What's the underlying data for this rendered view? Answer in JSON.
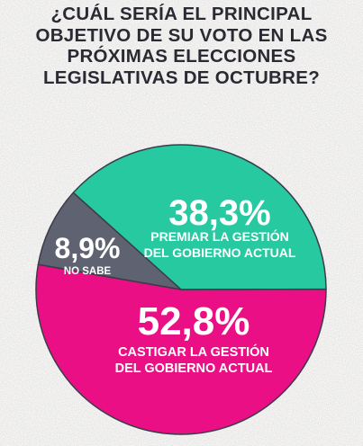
{
  "title_lines": [
    "¿CUÁL SERÍA EL PRINCIPAL",
    "OBJETIVO DE SU VOTO EN LAS",
    "PRÓXIMAS ELECCIONES",
    "LEGISLATIVAS DE OCTUBRE?"
  ],
  "colors": {
    "background": "#f1f0ef",
    "title": "#2b2a32"
  },
  "chart_data": {
    "type": "pie",
    "slices": [
      {
        "value": 38.3,
        "value_label": "38,3%",
        "label_lines": [
          "PREMIAR LA GESTIÓN",
          "DEL GOBIERNO ACTUAL"
        ],
        "color": "#27c9a1"
      },
      {
        "value": 52.8,
        "value_label": "52,8%",
        "label_lines": [
          "CASTIGAR LA GESTIÓN",
          "DEL GOBIERNO ACTUAL"
        ],
        "color": "#eb0f86"
      },
      {
        "value": 8.9,
        "value_label": "8,9%",
        "label_lines": [
          "NO SABE"
        ],
        "color": "#5f6270"
      }
    ],
    "legend": "none"
  }
}
